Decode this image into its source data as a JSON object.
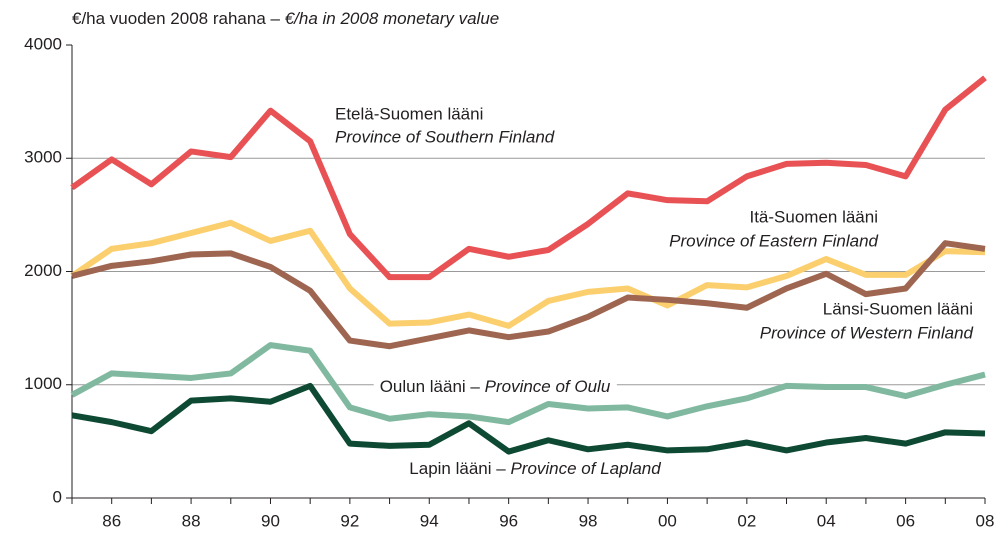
{
  "chart_data": {
    "type": "line",
    "title": "€/ha vuoden 2008 rahana –",
    "title_en": "€/ha in 2008 monetary value",
    "categories": [
      null,
      "86",
      null,
      "88",
      null,
      "90",
      null,
      "92",
      null,
      "94",
      null,
      "96",
      null,
      "98",
      null,
      "00",
      null,
      "02",
      null,
      "04",
      null,
      "06",
      null,
      "08"
    ],
    "ylim": [
      0,
      4000
    ],
    "yticks": [
      0,
      1000,
      2000,
      3000,
      4000
    ],
    "grid": true,
    "series": [
      {
        "name": "Etelä-Suomen lääni",
        "name_en": "Province of Southern Finland",
        "color": "#e85255",
        "values": [
          2740,
          2990,
          2770,
          3060,
          3010,
          3420,
          3150,
          2330,
          1950,
          1950,
          2200,
          2130,
          2190,
          2420,
          2690,
          2630,
          2620,
          2840,
          2950,
          2960,
          2940,
          2840,
          3430,
          3710
        ]
      },
      {
        "name": "Itä-Suomen lääni",
        "name_en": "Province of Eastern Finland",
        "color": "#fbcf6e",
        "values": [
          1960,
          2200,
          2250,
          2340,
          2430,
          2270,
          2360,
          1850,
          1540,
          1550,
          1620,
          1520,
          1740,
          1820,
          1850,
          1700,
          1880,
          1860,
          1960,
          2110,
          1970,
          1970,
          2180,
          2170
        ]
      },
      {
        "name": "Länsi-Suomen lääni",
        "name_en": "Province of Western Finland",
        "color": "#9e6650",
        "values": [
          1960,
          2050,
          2090,
          2150,
          2160,
          2040,
          1830,
          1390,
          1340,
          1410,
          1480,
          1420,
          1470,
          1600,
          1770,
          1750,
          1720,
          1680,
          1850,
          1980,
          1800,
          1850,
          2250,
          2200
        ]
      },
      {
        "name": "Oulun lääni –",
        "name_en": "Province of Oulu",
        "color": "#80b9a0",
        "values": [
          910,
          1100,
          1080,
          1060,
          1100,
          1350,
          1300,
          800,
          700,
          740,
          720,
          670,
          830,
          790,
          800,
          720,
          810,
          880,
          990,
          980,
          980,
          900,
          1000,
          1090
        ]
      },
      {
        "name": "Lapin lääni –",
        "name_en": "Province of Lapland",
        "color": "#0e4a33",
        "values": [
          730,
          670,
          590,
          860,
          880,
          850,
          990,
          480,
          460,
          470,
          660,
          410,
          510,
          430,
          470,
          420,
          430,
          490,
          420,
          490,
          530,
          480,
          580,
          570
        ]
      }
    ]
  }
}
